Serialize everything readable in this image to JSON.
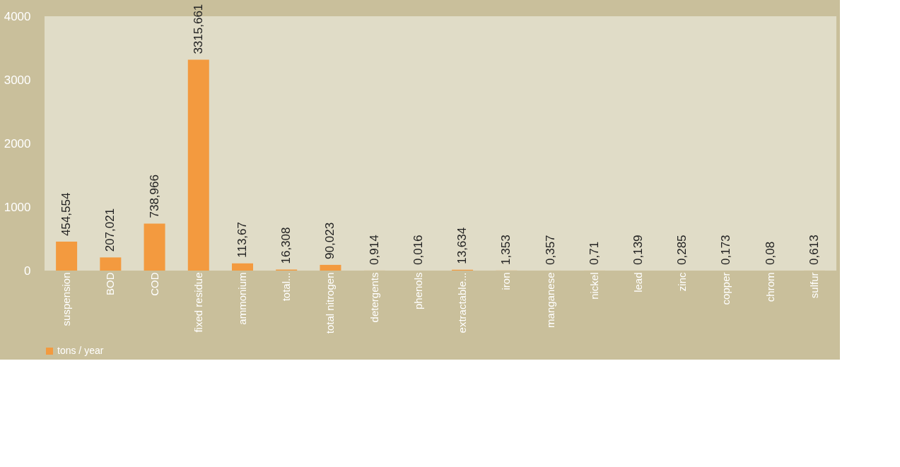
{
  "chart_data": {
    "type": "bar",
    "categories": [
      "suspension",
      "BOD",
      "COD",
      "fixed residue",
      "ammonium",
      "total...",
      "total nitrogen",
      "detergents",
      "phenols",
      "extractable...",
      "iron",
      "manganese",
      "nickel",
      "lead",
      "zinc",
      "copper",
      "chrom",
      "sulfur"
    ],
    "series": [
      {
        "name": "tons / year",
        "color": "#f39a3f",
        "values": [
          454.554,
          207.021,
          738.966,
          3315.661,
          113.67,
          16.308,
          90.023,
          0.914,
          0.016,
          13.634,
          1.353,
          0.357,
          0.71,
          0.139,
          0.285,
          0.173,
          0.08,
          0.613
        ],
        "value_labels": [
          "454,554",
          "207,021",
          "738,966",
          "3315,661",
          "113,67",
          "16,308",
          "90,023",
          "0,914",
          "0,016",
          "13,634",
          "1,353",
          "0,357",
          "0,71",
          "0,139",
          "0,285",
          "0,173",
          "0,08",
          "0,613"
        ]
      }
    ],
    "ylim": [
      0,
      4000
    ],
    "yticks": [
      0,
      1000,
      2000,
      3000,
      4000
    ],
    "grid": false,
    "legend": "bottom"
  }
}
